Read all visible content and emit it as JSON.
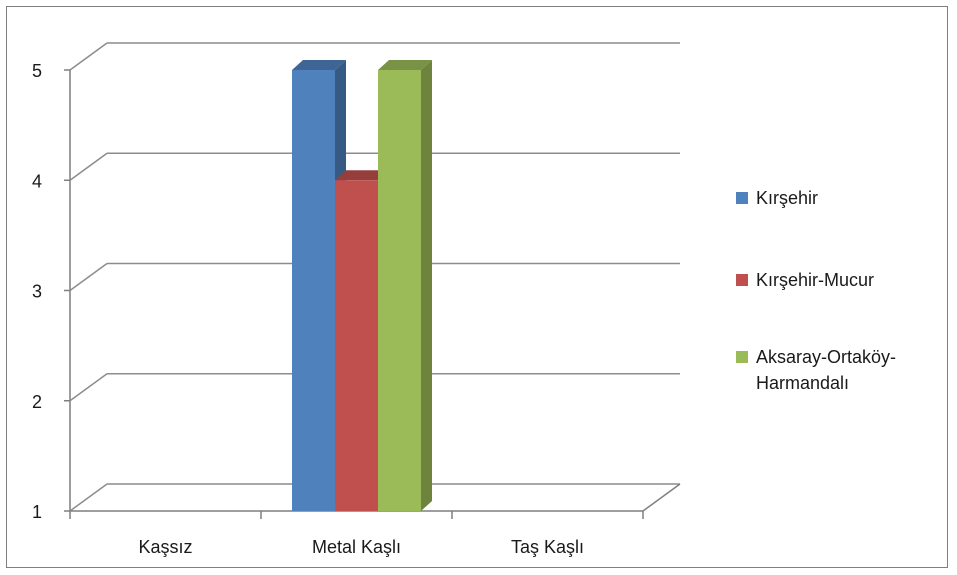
{
  "chart_data": {
    "type": "bar",
    "categories": [
      "Kaşsız",
      "Metal Kaşlı",
      "Taş Kaşlı"
    ],
    "series": [
      {
        "name": "Kırşehir",
        "values": [
          null,
          5,
          null
        ],
        "color": "#4f81bd"
      },
      {
        "name": "Kırşehir-Mucur",
        "values": [
          null,
          4,
          null
        ],
        "color": "#c0504d"
      },
      {
        "name": "Aksaray-Ortaköy-Harmandalı",
        "values": [
          null,
          5,
          null
        ],
        "color": "#9bbb59"
      }
    ],
    "y_ticks": [
      "1",
      "2",
      "3",
      "4",
      "5"
    ],
    "ylim": [
      1,
      5
    ],
    "grid": true,
    "style": "3d-column",
    "legend_position": "right"
  }
}
